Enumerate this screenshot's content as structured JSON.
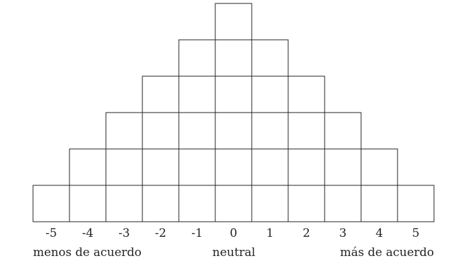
{
  "columns": [
    {
      "label": "-5",
      "cells": 1
    },
    {
      "label": "-4",
      "cells": 2
    },
    {
      "label": "-3",
      "cells": 3
    },
    {
      "label": "-2",
      "cells": 4
    },
    {
      "label": "-1",
      "cells": 5
    },
    {
      "label": "0",
      "cells": 6
    },
    {
      "label": "1",
      "cells": 5
    },
    {
      "label": "2",
      "cells": 4
    },
    {
      "label": "3",
      "cells": 3
    },
    {
      "label": "4",
      "cells": 2
    },
    {
      "label": "5",
      "cells": 1
    }
  ],
  "anchors": {
    "left": "menos de acuerdo",
    "middle": "neutral",
    "right": "más de acuerdo"
  },
  "colors": {
    "line": "#222222",
    "fill": "#ffffff"
  }
}
